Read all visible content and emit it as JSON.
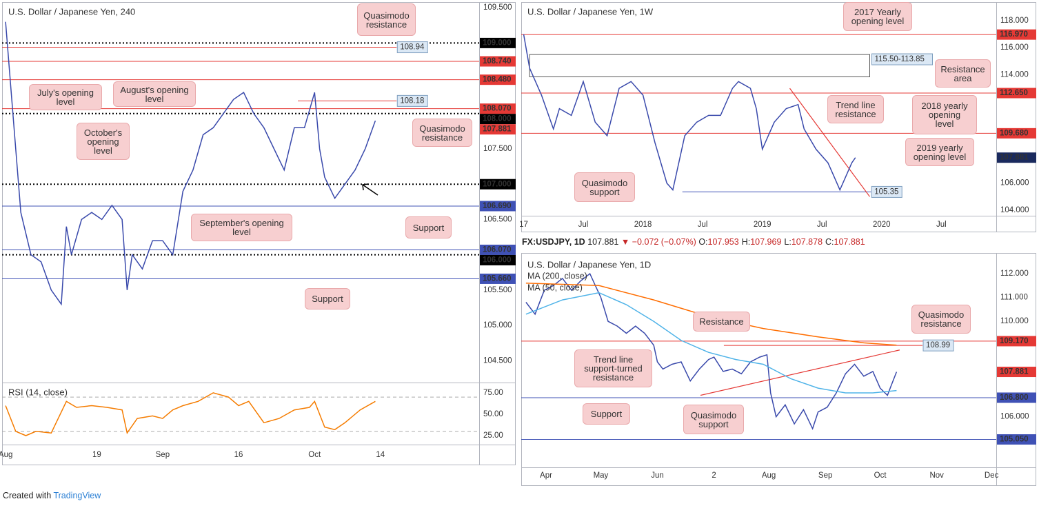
{
  "header": {
    "symbol": "FX:USDJPY, 1D",
    "last": "107.881",
    "arrow": "▼",
    "change": "−0.072 (−0.07%)",
    "ohlc": [
      {
        "label": "O:",
        "value": "107.953"
      },
      {
        "label": "H:",
        "value": "107.969"
      },
      {
        "label": "L:",
        "value": "107.878"
      },
      {
        "label": "C:",
        "value": "107.881"
      }
    ]
  },
  "footer": {
    "text": "Created with",
    "brand": "TradingView"
  },
  "chart_data": [
    {
      "type": "line",
      "title": "U.S. Dollar / Japanese Yen, 240",
      "xlim": [
        -0.7,
        93.5
      ],
      "ylim": [
        104.19,
        109.58
      ],
      "grid": false,
      "xticks": [
        {
          "value": 0,
          "label": "Aug"
        },
        {
          "value": 18,
          "label": "19"
        },
        {
          "value": 31,
          "label": "Sep"
        },
        {
          "value": 46,
          "label": "16"
        },
        {
          "value": 61,
          "label": "Oct"
        },
        {
          "value": 74,
          "label": "14"
        }
      ],
      "yticks": [
        {
          "value": 109.5,
          "label": "109.500"
        },
        {
          "value": 107.5,
          "label": "107.500"
        },
        {
          "value": 106.5,
          "label": "106.500"
        },
        {
          "value": 105.5,
          "label": "105.500"
        },
        {
          "value": 105,
          "label": "105.000"
        },
        {
          "value": 104.5,
          "label": "104.500"
        }
      ],
      "series": [
        {
          "color": "#3949ab",
          "x": [
            0,
            2,
            3,
            5,
            7,
            9,
            11,
            12,
            13,
            15,
            17,
            19,
            21,
            23,
            24,
            25,
            27,
            29,
            31,
            33,
            35,
            37,
            39,
            41,
            43,
            45,
            47,
            49,
            51,
            53,
            55,
            57,
            59,
            61,
            62,
            63,
            65,
            67,
            69,
            71,
            73
          ],
          "values": [
            109.3,
            107.5,
            106.6,
            106.0,
            105.9,
            105.5,
            105.3,
            106.4,
            106.0,
            106.5,
            106.6,
            106.5,
            106.7,
            106.5,
            105.5,
            106.0,
            105.8,
            106.2,
            106.2,
            106.0,
            106.9,
            107.2,
            107.7,
            107.8,
            108.0,
            108.2,
            108.3,
            108.0,
            107.8,
            107.5,
            107.2,
            107.8,
            107.8,
            108.3,
            107.5,
            107.1,
            106.8,
            107.0,
            107.2,
            107.5,
            107.9
          ]
        }
      ],
      "levels": [
        {
          "value": 109,
          "label": "109.000",
          "color": "#000000",
          "style": "dotted",
          "tag": "axis"
        },
        {
          "value": 108.94,
          "label": "108.94",
          "color": "#e53935",
          "style": "solid",
          "tag": "box",
          "xrange": [
            -0.7,
            77.2
          ]
        },
        {
          "value": 108.74,
          "label": "108.740",
          "color": "#e53935",
          "style": "solid",
          "tag": "axis"
        },
        {
          "value": 108.48,
          "label": "108.480",
          "color": "#e53935",
          "style": "solid",
          "tag": "axis"
        },
        {
          "value": 108.18,
          "label": "108.18",
          "color": "#e53935",
          "style": "solid",
          "tag": "box",
          "xrange": [
            57.7,
            77.2
          ]
        },
        {
          "value": 108.07,
          "label": "108.070",
          "color": "#e53935",
          "style": "solid",
          "tag": "axis"
        },
        {
          "value": 108,
          "label": "108.000",
          "color": "#000000",
          "style": "dotted",
          "tag": "axis"
        },
        {
          "value": 107.881,
          "label": "107.881",
          "color": "#e53935",
          "style": "none",
          "tag": "axis"
        },
        {
          "value": 107,
          "label": "107.000",
          "color": "#000000",
          "style": "dotted",
          "tag": "axis"
        },
        {
          "value": 106.69,
          "label": "106.690",
          "color": "#3f51b5",
          "style": "solid",
          "tag": "axis"
        },
        {
          "value": 106.07,
          "label": "106.070",
          "color": "#3f51b5",
          "style": "solid",
          "tag": "axis"
        },
        {
          "value": 106,
          "label": "106.000",
          "color": "#000000",
          "style": "dotted",
          "tag": "axis"
        },
        {
          "value": 105.66,
          "label": "105.660",
          "color": "#3f51b5",
          "style": "solid",
          "tag": "axis"
        }
      ],
      "annotations": [
        "Quasimodo\nresistance",
        "July's opening\nlevel",
        "August's opening\nlevel",
        "October's\nopening\nlevel",
        "Quasimodo\nresistance",
        "September's opening\nlevel",
        "Support",
        "Support"
      ]
    },
    {
      "type": "line",
      "title": "RSI (14, close)",
      "xlim": [
        -0.7,
        93.5
      ],
      "ylim": [
        14.5,
        87
      ],
      "grid": false,
      "yticks": [
        {
          "value": 75,
          "label": "75.00"
        },
        {
          "value": 50,
          "label": "50.00"
        },
        {
          "value": 25,
          "label": "25.00"
        }
      ],
      "guides": [
        70,
        30
      ],
      "series": [
        {
          "color": "#f57c00",
          "x": [
            0,
            2,
            4,
            6,
            9,
            12,
            14,
            17,
            20,
            23,
            24,
            26,
            29,
            31,
            33,
            35,
            38,
            41,
            44,
            46,
            48,
            51,
            54,
            57,
            60,
            61,
            63,
            65,
            67,
            70,
            73
          ],
          "values": [
            60,
            30,
            25,
            30,
            28,
            65,
            58,
            60,
            58,
            55,
            28,
            45,
            48,
            45,
            55,
            60,
            65,
            75,
            70,
            60,
            65,
            40,
            45,
            55,
            58,
            65,
            35,
            32,
            40,
            55,
            65
          ]
        }
      ]
    },
    {
      "type": "line",
      "title": "U.S. Dollar / Japanese Yen, 1W",
      "xlim": [
        2016.98,
        2020.96
      ],
      "ylim": [
        103.59,
        119.37
      ],
      "grid": false,
      "xticks": [
        {
          "value": 2017,
          "label": "17"
        },
        {
          "value": 2017.5,
          "label": "Jul"
        },
        2018,
        {
          "value": 2018.5,
          "label": "Jul"
        },
        2019,
        {
          "value": 2019.5,
          "label": "Jul"
        },
        2020,
        {
          "value": 2020.5,
          "label": "Jul"
        }
      ],
      "yticks": [
        {
          "value": 118,
          "label": "118.000"
        },
        {
          "value": 116,
          "label": "116.000"
        },
        {
          "value": 114,
          "label": "114.000"
        },
        {
          "value": 106,
          "label": "106.000"
        },
        {
          "value": 104,
          "label": "104.000"
        }
      ],
      "series": [
        {
          "color": "#3949ab",
          "x": [
            2017.0,
            2017.05,
            2017.15,
            2017.25,
            2017.3,
            2017.4,
            2017.5,
            2017.6,
            2017.7,
            2017.8,
            2017.9,
            2018.0,
            2018.1,
            2018.2,
            2018.25,
            2018.35,
            2018.45,
            2018.55,
            2018.65,
            2018.75,
            2018.8,
            2018.9,
            2018.95,
            2019.0,
            2019.1,
            2019.2,
            2019.3,
            2019.35,
            2019.45,
            2019.55,
            2019.6,
            2019.65,
            2019.7,
            2019.75,
            2019.78
          ],
          "values": [
            117.0,
            114.5,
            112.5,
            110.0,
            111.5,
            111.0,
            113.5,
            110.5,
            109.5,
            113.0,
            113.5,
            112.5,
            109.0,
            106.0,
            105.5,
            109.5,
            110.5,
            111.0,
            111.0,
            113.0,
            113.5,
            113.0,
            111.5,
            108.5,
            110.5,
            111.5,
            111.8,
            110.0,
            108.5,
            107.5,
            106.5,
            105.5,
            106.5,
            107.5,
            107.881
          ]
        }
      ],
      "levels": [
        {
          "value": 116.97,
          "label": "116.970",
          "color": "#e53935",
          "style": "solid",
          "tag": "axis"
        },
        {
          "value": 112.65,
          "label": "112.650",
          "color": "#e53935",
          "style": "solid",
          "tag": "axis"
        },
        {
          "value": 109.68,
          "label": "109.680",
          "color": "#e53935",
          "style": "solid",
          "tag": "axis"
        },
        {
          "value": 107.881,
          "label": "107.881",
          "color": "#1a2a5e",
          "style": "none",
          "tag": "axis"
        },
        {
          "value": 105.35,
          "label": "105.35",
          "color": "#3f51b5",
          "style": "solid",
          "tag": "box",
          "xrange": [
            2018.33,
            2019.91
          ]
        }
      ],
      "zone": {
        "top": 115.5,
        "bottom": 113.85,
        "label": "115.50-113.85",
        "xrange": [
          2017.05,
          2019.9
        ]
      },
      "trendlines": [
        {
          "color": "#e53935",
          "points": [
            [
              2019.23,
              113.0
            ],
            [
              2019.9,
              105.0
            ]
          ]
        }
      ],
      "annotations": [
        "2017 Yearly\nopening level",
        "Resistance\narea",
        "Trend line\nresistance",
        "2018 yearly\nopening\nlevel",
        "2019 yearly\nopening level",
        "Quasimodo\nsupport"
      ]
    },
    {
      "type": "line",
      "title": "U.S. Dollar / Japanese Yen, 1D",
      "xlim": [
        77.4,
        337.6
      ],
      "ylim": [
        103.88,
        112.78
      ],
      "grid": false,
      "xticks": [
        {
          "value": 91,
          "label": "Apr"
        },
        {
          "value": 121,
          "label": "May"
        },
        {
          "value": 152,
          "label": "Jun"
        },
        {
          "value": 183,
          "label": "2"
        },
        {
          "value": 213,
          "label": "Aug"
        },
        {
          "value": 244,
          "label": "Sep"
        },
        {
          "value": 274,
          "label": "Oct"
        },
        {
          "value": 305,
          "label": "Nov"
        },
        {
          "value": 335,
          "label": "Dec"
        }
      ],
      "yticks": [
        {
          "value": 112,
          "label": "112.000"
        },
        {
          "value": 111,
          "label": "111.000"
        },
        {
          "value": 110,
          "label": "110.000"
        },
        {
          "value": 106,
          "label": "106.000"
        }
      ],
      "series": [
        {
          "color": "#3949ab",
          "x": [
            80,
            85,
            90,
            95,
            100,
            105,
            110,
            115,
            118,
            121,
            125,
            130,
            135,
            140,
            145,
            150,
            152,
            155,
            160,
            165,
            170,
            175,
            180,
            183,
            188,
            193,
            198,
            203,
            208,
            212,
            214,
            217,
            222,
            227,
            232,
            237,
            240,
            245,
            250,
            255,
            260,
            265,
            270,
            274,
            278,
            280,
            283
          ],
          "values": [
            110.8,
            110.3,
            111.3,
            111.5,
            111.8,
            111.3,
            111.7,
            112.0,
            111.5,
            111.0,
            110.0,
            109.8,
            109.5,
            109.8,
            109.5,
            109.0,
            108.3,
            108.0,
            108.2,
            108.3,
            107.5,
            108.0,
            108.4,
            108.5,
            107.9,
            108.0,
            107.8,
            108.3,
            108.5,
            108.6,
            107.0,
            106.0,
            106.5,
            105.7,
            106.3,
            105.5,
            106.2,
            106.4,
            107.0,
            107.8,
            108.2,
            107.7,
            107.9,
            107.2,
            106.9,
            107.3,
            107.881
          ]
        },
        {
          "name": "MA (200, close)",
          "color": "#ff6d00",
          "x": [
            80,
            120,
            150,
            180,
            210,
            240,
            265,
            283
          ],
          "values": [
            111.6,
            111.5,
            110.9,
            110.2,
            109.7,
            109.35,
            109.1,
            109.0
          ]
        },
        {
          "name": "MA (50, close)",
          "color": "#4fb3e8",
          "x": [
            80,
            100,
            120,
            135,
            150,
            165,
            180,
            195,
            210,
            225,
            240,
            255,
            270,
            283
          ],
          "values": [
            110.3,
            110.9,
            111.2,
            110.7,
            110.0,
            109.2,
            108.7,
            108.4,
            108.2,
            107.6,
            107.2,
            107.0,
            107.0,
            107.1
          ]
        }
      ],
      "levels": [
        {
          "value": 109.17,
          "label": "109.170",
          "color": "#e53935",
          "style": "solid",
          "tag": "axis"
        },
        {
          "value": 108.99,
          "label": "108.99",
          "color": "#e53935",
          "style": "solid",
          "tag": "box",
          "xrange": [
            188.4,
            297.2
          ]
        },
        {
          "value": 107.881,
          "label": "107.881",
          "color": "#e53935",
          "style": "none",
          "tag": "axis"
        },
        {
          "value": 106.8,
          "label": "106.800",
          "color": "#3f51b5",
          "style": "solid",
          "tag": "axis"
        },
        {
          "value": 105.05,
          "label": "105.050",
          "color": "#3f51b5",
          "style": "solid",
          "tag": "axis"
        }
      ],
      "trendlines": [
        {
          "color": "#e53935",
          "points": [
            [
              175.6,
              106.9
            ],
            [
              284.7,
              108.8
            ]
          ]
        }
      ],
      "annotations": [
        "Quasimodo\nresistance",
        "Resistance",
        "Trend line\nsupport-turned\nresistance",
        "Support",
        "Quasimodo\nsupport"
      ]
    }
  ]
}
